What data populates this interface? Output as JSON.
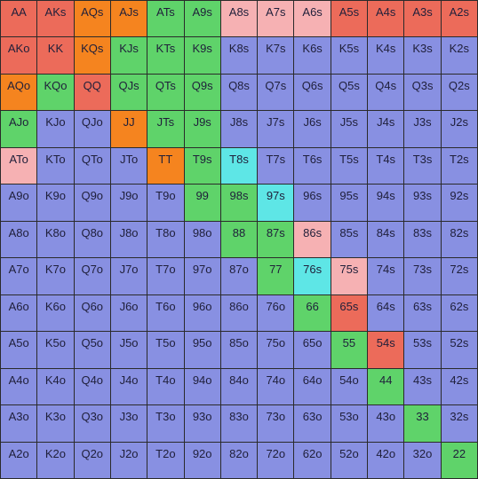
{
  "palette": {
    "R": "#ec6b5a",
    "O": "#f5841f",
    "G": "#5fd36a",
    "P": "#f6b1b3",
    "C": "#5ee6e6",
    "B": "#8890e2"
  },
  "rows": [
    {
      "labels": [
        "AA",
        "AKs",
        "AQs",
        "AJs",
        "ATs",
        "A9s",
        "A8s",
        "A7s",
        "A6s",
        "A5s",
        "A4s",
        "A3s",
        "A2s"
      ],
      "colors": [
        "R",
        "R",
        "O",
        "O",
        "G",
        "G",
        "P",
        "P",
        "P",
        "R",
        "R",
        "R",
        "R"
      ]
    },
    {
      "labels": [
        "AKo",
        "KK",
        "KQs",
        "KJs",
        "KTs",
        "K9s",
        "K8s",
        "K7s",
        "K6s",
        "K5s",
        "K4s",
        "K3s",
        "K2s"
      ],
      "colors": [
        "R",
        "R",
        "O",
        "G",
        "G",
        "G",
        "B",
        "B",
        "B",
        "B",
        "B",
        "B",
        "B"
      ]
    },
    {
      "labels": [
        "AQo",
        "KQo",
        "QQ",
        "QJs",
        "QTs",
        "Q9s",
        "Q8s",
        "Q7s",
        "Q6s",
        "Q5s",
        "Q4s",
        "Q3s",
        "Q2s"
      ],
      "colors": [
        "O",
        "G",
        "R",
        "G",
        "G",
        "G",
        "B",
        "B",
        "B",
        "B",
        "B",
        "B",
        "B"
      ]
    },
    {
      "labels": [
        "AJo",
        "KJo",
        "QJo",
        "JJ",
        "JTs",
        "J9s",
        "J8s",
        "J7s",
        "J6s",
        "J5s",
        "J4s",
        "J3s",
        "J2s"
      ],
      "colors": [
        "G",
        "B",
        "B",
        "O",
        "G",
        "G",
        "B",
        "B",
        "B",
        "B",
        "B",
        "B",
        "B"
      ]
    },
    {
      "labels": [
        "ATo",
        "KTo",
        "QTo",
        "JTo",
        "TT",
        "T9s",
        "T8s",
        "T7s",
        "T6s",
        "T5s",
        "T4s",
        "T3s",
        "T2s"
      ],
      "colors": [
        "P",
        "B",
        "B",
        "B",
        "O",
        "G",
        "C",
        "B",
        "B",
        "B",
        "B",
        "B",
        "B"
      ]
    },
    {
      "labels": [
        "A9o",
        "K9o",
        "Q9o",
        "J9o",
        "T9o",
        "99",
        "98s",
        "97s",
        "96s",
        "95s",
        "94s",
        "93s",
        "92s"
      ],
      "colors": [
        "B",
        "B",
        "B",
        "B",
        "B",
        "G",
        "G",
        "C",
        "B",
        "B",
        "B",
        "B",
        "B"
      ]
    },
    {
      "labels": [
        "A8o",
        "K8o",
        "Q8o",
        "J8o",
        "T8o",
        "98o",
        "88",
        "87s",
        "86s",
        "85s",
        "84s",
        "83s",
        "82s"
      ],
      "colors": [
        "B",
        "B",
        "B",
        "B",
        "B",
        "B",
        "G",
        "G",
        "P",
        "B",
        "B",
        "B",
        "B"
      ]
    },
    {
      "labels": [
        "A7o",
        "K7o",
        "Q7o",
        "J7o",
        "T7o",
        "97o",
        "87o",
        "77",
        "76s",
        "75s",
        "74s",
        "73s",
        "72s"
      ],
      "colors": [
        "B",
        "B",
        "B",
        "B",
        "B",
        "B",
        "B",
        "G",
        "C",
        "P",
        "B",
        "B",
        "B"
      ]
    },
    {
      "labels": [
        "A6o",
        "K6o",
        "Q6o",
        "J6o",
        "T6o",
        "96o",
        "86o",
        "76o",
        "66",
        "65s",
        "64s",
        "63s",
        "62s"
      ],
      "colors": [
        "B",
        "B",
        "B",
        "B",
        "B",
        "B",
        "B",
        "B",
        "G",
        "R",
        "B",
        "B",
        "B"
      ]
    },
    {
      "labels": [
        "A5o",
        "K5o",
        "Q5o",
        "J5o",
        "T5o",
        "95o",
        "85o",
        "75o",
        "65o",
        "55",
        "54s",
        "53s",
        "52s"
      ],
      "colors": [
        "B",
        "B",
        "B",
        "B",
        "B",
        "B",
        "B",
        "B",
        "B",
        "G",
        "R",
        "B",
        "B"
      ]
    },
    {
      "labels": [
        "A4o",
        "K4o",
        "Q4o",
        "J4o",
        "T4o",
        "94o",
        "84o",
        "74o",
        "64o",
        "54o",
        "44",
        "43s",
        "42s"
      ],
      "colors": [
        "B",
        "B",
        "B",
        "B",
        "B",
        "B",
        "B",
        "B",
        "B",
        "B",
        "G",
        "B",
        "B"
      ]
    },
    {
      "labels": [
        "A3o",
        "K3o",
        "Q3o",
        "J3o",
        "T3o",
        "93o",
        "83o",
        "73o",
        "63o",
        "53o",
        "43o",
        "33",
        "32s"
      ],
      "colors": [
        "B",
        "B",
        "B",
        "B",
        "B",
        "B",
        "B",
        "B",
        "B",
        "B",
        "B",
        "G",
        "B"
      ]
    },
    {
      "labels": [
        "A2o",
        "K2o",
        "Q2o",
        "J2o",
        "T2o",
        "92o",
        "82o",
        "72o",
        "62o",
        "52o",
        "42o",
        "32o",
        "22"
      ],
      "colors": [
        "B",
        "B",
        "B",
        "B",
        "B",
        "B",
        "B",
        "B",
        "B",
        "B",
        "B",
        "B",
        "G"
      ]
    }
  ]
}
